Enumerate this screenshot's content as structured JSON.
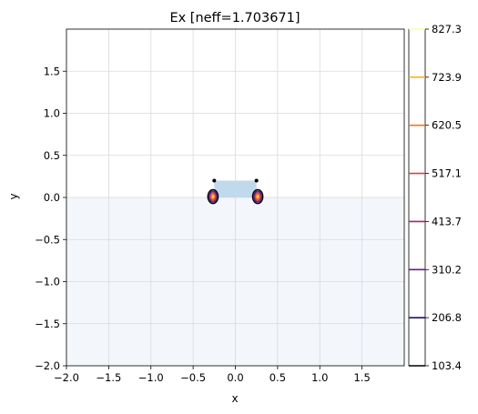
{
  "chart_data": {
    "type": "contour",
    "title": "Ex [neff=1.703671]",
    "xlabel": "x",
    "ylabel": "y",
    "xlim": [
      -2.0,
      2.0
    ],
    "ylim": [
      -2.0,
      2.0
    ],
    "xticks": [
      -2.0,
      -1.5,
      -1.0,
      -0.5,
      0.0,
      0.5,
      1.0,
      1.5
    ],
    "xtick_labels": [
      "−2.0",
      "−1.5",
      "−1.0",
      "−0.5",
      "0.0",
      "0.5",
      "1.0",
      "1.5"
    ],
    "yticks": [
      -2.0,
      -1.5,
      -1.0,
      -0.5,
      0.0,
      0.5,
      1.0,
      1.5
    ],
    "ytick_labels": [
      "−2.0",
      "−1.5",
      "−1.0",
      "−0.5",
      "0.0",
      "0.5",
      "1.0",
      "1.5"
    ],
    "grid": true,
    "substrate": {
      "x": [
        -2.0,
        2.0
      ],
      "y": [
        -2.0,
        0.0
      ],
      "color": "#f3f7fc"
    },
    "core": {
      "x": [
        -0.25,
        0.25
      ],
      "y": [
        0.0,
        0.2
      ],
      "color": "#c1d9ed"
    },
    "field_hotspots": [
      {
        "x": -0.265,
        "y": 0.01
      },
      {
        "x": 0.265,
        "y": 0.01
      }
    ],
    "corner_dots": [
      {
        "x": -0.25,
        "y": 0.2
      },
      {
        "x": 0.25,
        "y": 0.2
      }
    ],
    "colorbar": {
      "levels": [
        103.4,
        206.8,
        310.2,
        413.7,
        517.1,
        620.5,
        723.9,
        827.3
      ],
      "labels": [
        "103.4",
        "206.8",
        "310.2",
        "413.7",
        "517.1",
        "620.5",
        "723.9",
        "827.3"
      ],
      "colors": [
        "#000004",
        "#2a0a6e",
        "#6a1a8a",
        "#a0286e",
        "#d24449",
        "#f37619",
        "#fcb12d",
        "#fcfea4"
      ],
      "range": [
        103.4,
        827.3
      ]
    }
  }
}
